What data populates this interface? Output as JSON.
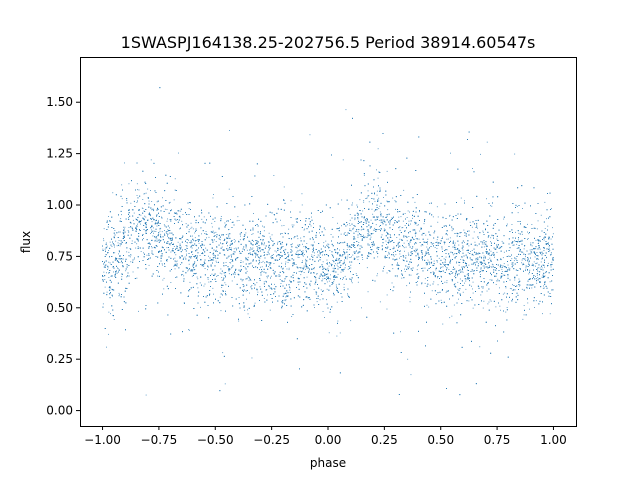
{
  "chart_data": {
    "type": "scatter",
    "title": "1SWASPJ164138.25-202756.5 Period 38914.60547s",
    "xlabel": "phase",
    "ylabel": "flux",
    "xlim": [
      -1.1,
      1.1
    ],
    "ylim": [
      -0.075,
      1.72
    ],
    "x_ticks": [
      -1.0,
      -0.75,
      -0.5,
      -0.25,
      0.0,
      0.25,
      0.5,
      0.75,
      1.0
    ],
    "x_tick_labels": [
      "−1.00",
      "−0.75",
      "−0.50",
      "−0.25",
      "0.00",
      "0.25",
      "0.50",
      "0.75",
      "1.00"
    ],
    "y_ticks": [
      0.0,
      0.25,
      0.5,
      0.75,
      1.0,
      1.25,
      1.5
    ],
    "y_tick_labels": [
      "0.00",
      "0.25",
      "0.50",
      "0.75",
      "1.00",
      "1.25",
      "1.50"
    ],
    "grid": false,
    "series_color": "#1f77b4",
    "profile": {
      "phase": [
        -1.0,
        -0.95,
        -0.9,
        -0.85,
        -0.8,
        -0.75,
        -0.7,
        -0.6,
        -0.5,
        -0.4,
        -0.3,
        -0.2,
        -0.1,
        0.0,
        0.05,
        0.1,
        0.15,
        0.2,
        0.25,
        0.3,
        0.4,
        0.5,
        0.6,
        0.7,
        0.8,
        0.9,
        1.0
      ],
      "flux": [
        0.72,
        0.7,
        0.8,
        0.88,
        0.9,
        0.87,
        0.83,
        0.78,
        0.75,
        0.74,
        0.73,
        0.72,
        0.72,
        0.72,
        0.7,
        0.78,
        0.88,
        0.9,
        0.87,
        0.83,
        0.78,
        0.75,
        0.74,
        0.73,
        0.72,
        0.72,
        0.72
      ]
    }
  }
}
